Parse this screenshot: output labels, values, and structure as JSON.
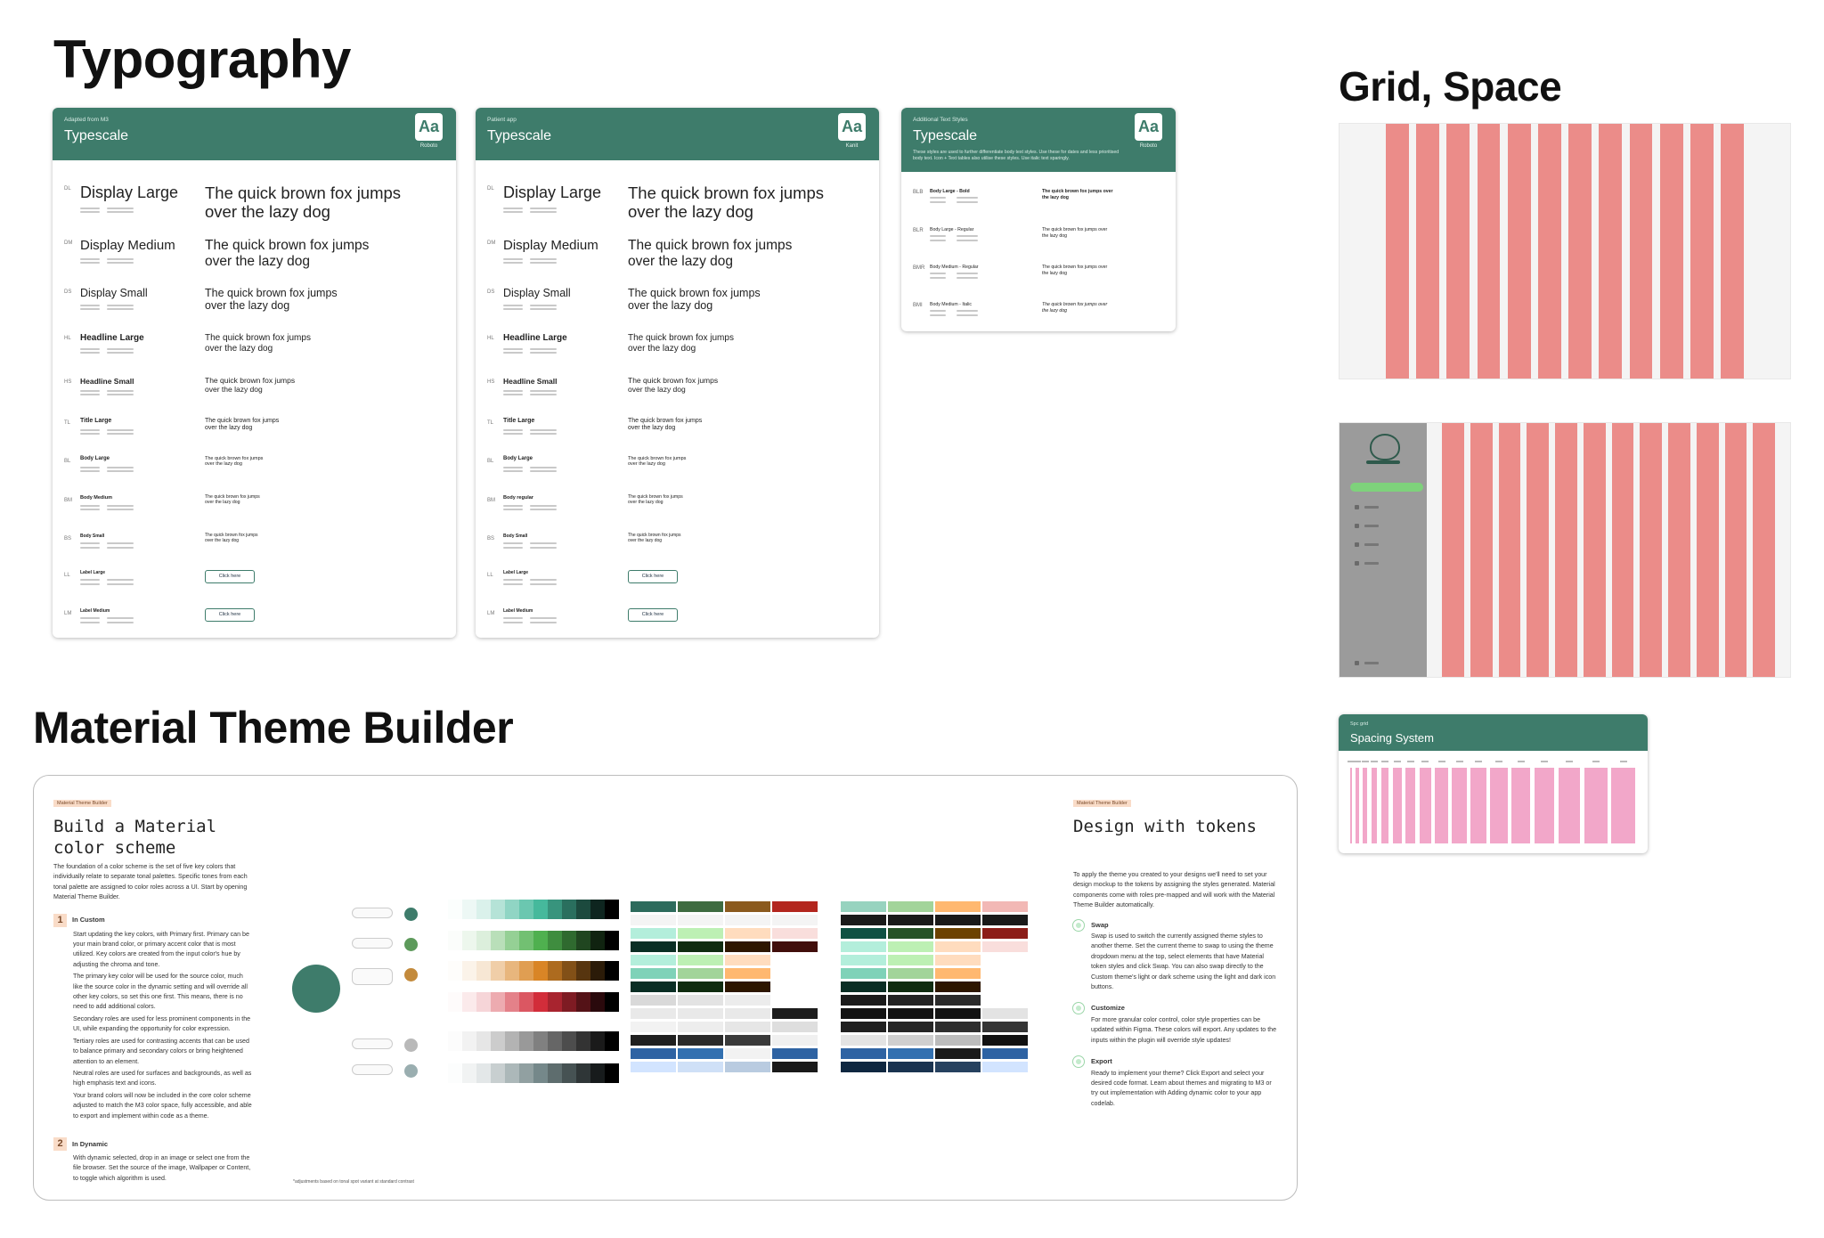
{
  "typography": {
    "title": "Typography"
  },
  "typescale_cards": [
    {
      "eyebrow": "Adapted from M3",
      "title": "Typescale",
      "badge": "Aa",
      "font": "Roboto",
      "rows": [
        {
          "abbr": "DL",
          "name": "Display Large",
          "sample": "The quick brown fox jumps over the lazy dog"
        },
        {
          "abbr": "DM",
          "name": "Display Medium",
          "sample": "The quick brown fox jumps over the lazy dog"
        },
        {
          "abbr": "DS",
          "name": "Display Small",
          "sample": "The quick brown fox jumps over the lazy dog"
        },
        {
          "abbr": "HL",
          "name": "Headline Large",
          "sample": "The quick brown fox jumps over the lazy dog"
        },
        {
          "abbr": "HS",
          "name": "Headline Small",
          "sample": "The quick brown fox jumps over the lazy dog"
        },
        {
          "abbr": "TL",
          "name": "Title Large",
          "sample": "The quick brown fox jumps over the lazy dog"
        },
        {
          "abbr": "BL",
          "name": "Body Large",
          "sample": "The quick brown fox jumps over the lazy dog"
        },
        {
          "abbr": "BM",
          "name": "Body Medium",
          "sample": "The quick brown fox jumps over the lazy dog"
        },
        {
          "abbr": "BS",
          "name": "Body Small",
          "sample": "The quick brown fox jumps over the lazy dog"
        },
        {
          "abbr": "LL",
          "name": "Label Large",
          "button": "Click here"
        },
        {
          "abbr": "LM",
          "name": "Label Medium",
          "button": "Click here"
        }
      ]
    },
    {
      "eyebrow": "Patient app",
      "title": "Typescale",
      "badge": "Aa",
      "font": "Kanit",
      "rows": [
        {
          "abbr": "DL",
          "name": "Display Large",
          "sample": "The quick brown fox jumps over the lazy dog"
        },
        {
          "abbr": "DM",
          "name": "Display Medium",
          "sample": "The quick brown fox jumps over the lazy dog"
        },
        {
          "abbr": "DS",
          "name": "Display Small",
          "sample": "The quick brown fox jumps over the lazy dog"
        },
        {
          "abbr": "HL",
          "name": "Headline Large",
          "sample": "The quick brown fox jumps over the lazy dog"
        },
        {
          "abbr": "HS",
          "name": "Headline Small",
          "sample": "The quick brown fox jumps over the lazy dog"
        },
        {
          "abbr": "TL",
          "name": "Title Large",
          "sample": "The quick brown fox jumps over the lazy dog"
        },
        {
          "abbr": "BL",
          "name": "Body Large",
          "sample": "The quick brown fox jumps over the lazy dog"
        },
        {
          "abbr": "BM",
          "name": "Body regular",
          "sample": "The quick brown fox jumps over the lazy dog"
        },
        {
          "abbr": "BS",
          "name": "Body Small",
          "sample": "The quick brown fox jumps over the lazy dog"
        },
        {
          "abbr": "LL",
          "name": "Label Large",
          "button": "Click here"
        },
        {
          "abbr": "LM",
          "name": "Label Medium",
          "button": "Click here"
        }
      ]
    },
    {
      "eyebrow": "Additional Text Styles",
      "title": "Typescale",
      "badge": "Aa",
      "font": "Roboto",
      "description": "These styles are used to further differentiate body text styles. Use these for dates and less prioritised body text. Icon + Text tables also utilise these styles. Use italic text sparingly.",
      "rows": [
        {
          "abbr": "BLB",
          "name": "Body Large - Bold",
          "sample": "The quick brown fox jumps over the lazy dog"
        },
        {
          "abbr": "BLR",
          "name": "Body Large - Regular",
          "sample": "The quick brown fox jumps over the lazy dog"
        },
        {
          "abbr": "BMR",
          "name": "Body Medium - Regular",
          "sample": "The quick brown fox jumps over the lazy dog"
        },
        {
          "abbr": "BMI",
          "name": "Body Medium - Italic",
          "sample": "The quick brown fox jumps over the lazy dog"
        }
      ]
    }
  ],
  "grid": {
    "title": "Grid, Space",
    "spacing_card": {
      "eyebrow": "Spc grid",
      "title": "Spacing System"
    }
  },
  "theme_builder": {
    "title": "Material Theme Builder",
    "left": {
      "tag": "Material Theme Builder",
      "heading": "Build a Material color scheme",
      "intro": "The foundation of a color scheme is the set of five key colors that individually relate to separate tonal palettes. Specific tones from each tonal palette are assigned to color roles across a UI. Start by opening Material Theme Builder.",
      "steps": [
        {
          "num": "1",
          "title": "In Custom",
          "paragraphs": [
            "Start updating the key colors, with Primary first. Primary can be your main brand color, or primary accent color that is most utilized. Key colors are created from the input color's hue by adjusting the chroma and tone.",
            "The primary key color will be used for the source color, much like the source color in the dynamic setting and will override all other key colors, so set this one first. This means, there is no need to add additional colors.",
            "Secondary roles are used for less prominent components in the UI, while expanding the opportunity for color expression.",
            "Tertiary roles are used for contrasting accents that can be used to balance primary and secondary colors or bring heightened attention to an element.",
            "Neutral roles are used for surfaces and backgrounds, as well as high emphasis text and icons.",
            "Your brand colors will now be included in the core color scheme adjusted to match the M3 color space, fully accessible, and able to export and implement within code as a theme."
          ]
        },
        {
          "num": "2",
          "title": "In Dynamic",
          "paragraphs": [
            "With dynamic selected, drop in an image or select one from the file browser. Set the source of the image, Wallpaper or Content, to toggle which algorithm is used."
          ]
        }
      ]
    },
    "footnote": "*adjustments based on tonal spot variant at standard contrast",
    "right": {
      "tag": "Material Theme Builder",
      "heading": "Design with tokens",
      "intro": "To apply the theme you created to your designs we'll need to set your design mockup to the tokens by assigning the styles generated. Material components come with roles pre-mapped and will work with the Material Theme Builder automatically.",
      "items": [
        {
          "title": "Swap",
          "text": "Swap is used to switch the currently assigned theme styles to another theme. Set the current theme to swap to using the theme dropdown menu at the top, select elements that have Material token styles and click Swap. You can also swap directly to the Custom theme's light or dark scheme using the light and dark icon buttons."
        },
        {
          "title": "Customize",
          "text": "For more granular color control, color style properties can be updated within Figma. These colors will export. Any updates to the inputs within the plugin will override style updates!"
        },
        {
          "title": "Export",
          "text": "Ready to implement your theme? Click Export and select your desired code format. Learn about themes and migrating to M3 or try out implementation with Adding dynamic color to your app codelab."
        }
      ]
    }
  }
}
